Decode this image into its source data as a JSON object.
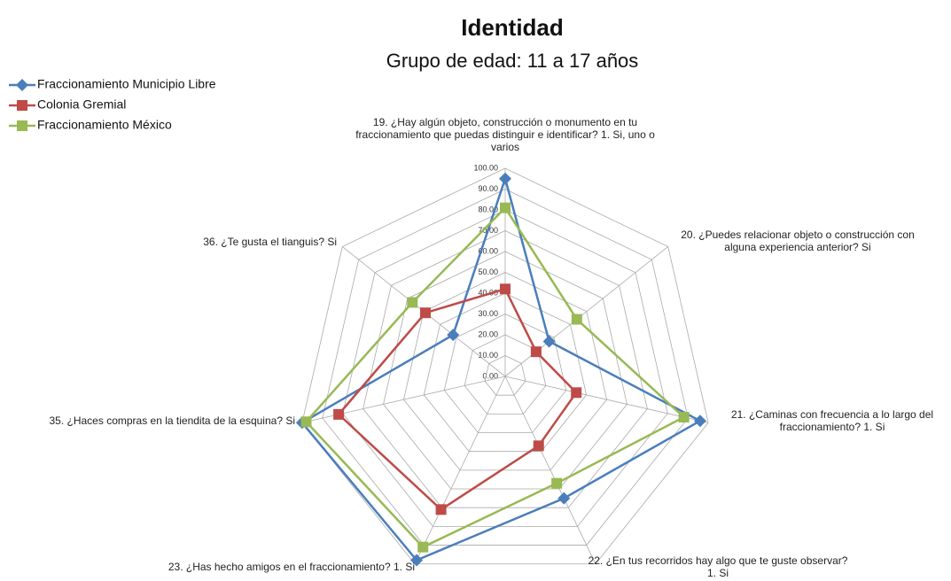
{
  "chart_data": {
    "type": "radar",
    "title": "Identidad",
    "subtitle": "Grupo de edad: 11 a 17 años",
    "categories": [
      "19. ¿Hay algún objeto, construcción o monumento en tu fraccionamiento que puedas distinguir e identificar? 1. Si, uno o varios",
      "20. ¿Puedes relacionar objeto o construcción con alguna experiencia anterior? Si",
      "21. ¿Caminas con frecuencia a lo largo del fraccionamiento? 1. Si",
      "22. ¿En tus recorridos hay algo que te guste observar? 1. Si",
      "23. ¿Has hecho amigos en el fraccionamiento? 1. Si",
      "35. ¿Haces compras en la tiendita de la esquina? Si",
      "36. ¿Te gusta el tianguis? Si"
    ],
    "series": [
      {
        "name": "Fraccionamiento Municipio Libre",
        "color": "#4a7ebb",
        "marker": "diamond",
        "values": [
          95,
          27,
          96,
          65,
          98,
          100,
          32
        ]
      },
      {
        "name": "Colonia Gremial",
        "color": "#be4b48",
        "marker": "square",
        "values": [
          42,
          19,
          35,
          37,
          71,
          82,
          49
        ]
      },
      {
        "name": "Fraccionamiento México",
        "color": "#98b954",
        "marker": "square",
        "values": [
          81,
          44,
          88,
          57,
          91,
          98,
          57
        ]
      }
    ],
    "rlim": [
      0,
      100
    ],
    "rticks": [
      {
        "value": 0,
        "label": "0.00"
      },
      {
        "value": 10,
        "label": "10.00"
      },
      {
        "value": 20,
        "label": "20.00"
      },
      {
        "value": 30,
        "label": "30.00"
      },
      {
        "value": 40,
        "label": "40.00"
      },
      {
        "value": 50,
        "label": "50.00"
      },
      {
        "value": 60,
        "label": "60.00"
      },
      {
        "value": 70,
        "label": "70.00"
      },
      {
        "value": 80,
        "label": "80.00"
      },
      {
        "value": 90,
        "label": "90.00"
      },
      {
        "value": 100,
        "label": "100.00"
      }
    ],
    "grid": true,
    "legend": "top-left"
  }
}
